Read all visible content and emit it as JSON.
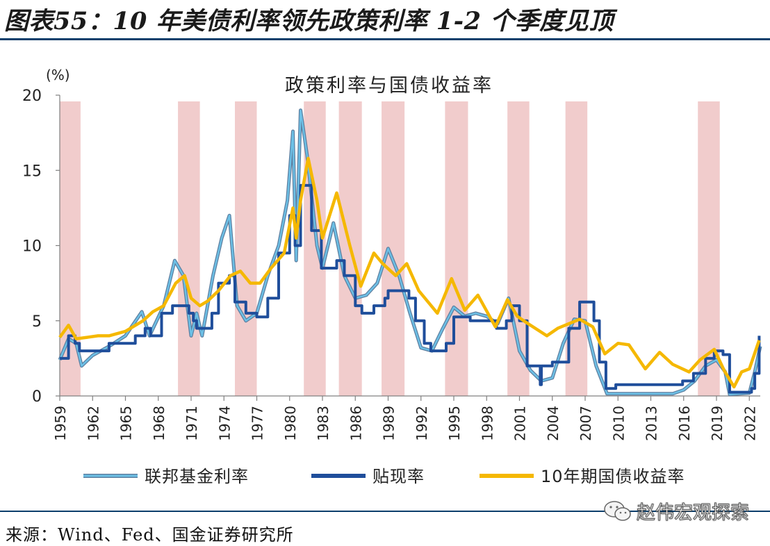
{
  "figure": {
    "title": "图表55：10 年美债利率领先政策利率 1-2 个季度见顶",
    "source": "来源：Wind、Fed、国金证券研究所",
    "watermark": "赵伟宏观探索"
  },
  "chart_data": {
    "type": "line",
    "title": "政策利率与国债收益率",
    "ylabel": "(%)",
    "xlabel": "",
    "xlim": [
      1959,
      2023
    ],
    "ylim": [
      0,
      20
    ],
    "yticks": [
      0,
      5,
      10,
      15,
      20
    ],
    "xticks": [
      "1959",
      "1962",
      "1965",
      "1968",
      "1971",
      "1974",
      "1977",
      "1980",
      "1983",
      "1986",
      "1989",
      "1992",
      "1995",
      "1998",
      "2001",
      "2004",
      "2007",
      "2010",
      "2013",
      "2016",
      "2019",
      "2022"
    ],
    "grid": false,
    "legend_position": "bottom",
    "shaded_periods": [
      [
        1959.0,
        1960.9
      ],
      [
        1969.8,
        1971.8
      ],
      [
        1975.0,
        1977.0
      ],
      [
        1981.3,
        1983.3
      ],
      [
        1984.5,
        1986.6
      ],
      [
        1988.4,
        1990.5
      ],
      [
        1994.2,
        1996.3
      ],
      [
        1999.9,
        2001.9
      ],
      [
        2005.2,
        2007.2
      ],
      [
        2017.3,
        2019.3
      ]
    ],
    "series": [
      {
        "name": "联邦基金利率",
        "color": "#6cc0e6",
        "points": [
          [
            1959,
            2.4
          ],
          [
            1959.8,
            3.8
          ],
          [
            1960.5,
            3.5
          ],
          [
            1961,
            2
          ],
          [
            1962,
            2.7
          ],
          [
            1963.5,
            3.3
          ],
          [
            1965,
            4
          ],
          [
            1966.5,
            5.6
          ],
          [
            1967.2,
            4
          ],
          [
            1968.5,
            6
          ],
          [
            1969.5,
            9
          ],
          [
            1970.3,
            8
          ],
          [
            1971,
            4
          ],
          [
            1971.5,
            5.5
          ],
          [
            1972,
            4
          ],
          [
            1973,
            8
          ],
          [
            1973.8,
            10.5
          ],
          [
            1974.5,
            12
          ],
          [
            1975.2,
            6
          ],
          [
            1976,
            5
          ],
          [
            1977,
            5.5
          ],
          [
            1978,
            8
          ],
          [
            1979,
            10
          ],
          [
            1979.8,
            13
          ],
          [
            1980.3,
            17.6
          ],
          [
            1980.6,
            9
          ],
          [
            1981,
            19
          ],
          [
            1981.6,
            16
          ],
          [
            1982.5,
            10
          ],
          [
            1983,
            8.5
          ],
          [
            1984,
            11.5
          ],
          [
            1985,
            8
          ],
          [
            1986,
            6.5
          ],
          [
            1987,
            6.7
          ],
          [
            1988,
            7.5
          ],
          [
            1989,
            9.8
          ],
          [
            1990,
            8
          ],
          [
            1991,
            5.5
          ],
          [
            1992,
            3.2
          ],
          [
            1993,
            3
          ],
          [
            1994,
            4.5
          ],
          [
            1995,
            5.9
          ],
          [
            1996,
            5.3
          ],
          [
            1997,
            5.5
          ],
          [
            1998,
            5.3
          ],
          [
            1999,
            4.8
          ],
          [
            2000,
            6.5
          ],
          [
            2001,
            3
          ],
          [
            2002,
            1.7
          ],
          [
            2003,
            1
          ],
          [
            2004,
            1.2
          ],
          [
            2005,
            3.5
          ],
          [
            2006,
            5.1
          ],
          [
            2007,
            5
          ],
          [
            2008,
            2
          ],
          [
            2009,
            0.15
          ],
          [
            2012,
            0.15
          ],
          [
            2015,
            0.15
          ],
          [
            2016,
            0.4
          ],
          [
            2017,
            1
          ],
          [
            2018,
            2
          ],
          [
            2019,
            2.4
          ],
          [
            2019.8,
            1.6
          ],
          [
            2020.2,
            0.1
          ],
          [
            2022,
            0.2
          ],
          [
            2022.5,
            1.6
          ],
          [
            2023,
            3.3
          ]
        ]
      },
      {
        "name": "贴现率",
        "color": "#1f4e9b",
        "points": [
          [
            1959,
            2.5
          ],
          [
            1959.8,
            4
          ],
          [
            1960.4,
            3.5
          ],
          [
            1960.8,
            3
          ],
          [
            1963.5,
            3.5
          ],
          [
            1965.9,
            4
          ],
          [
            1966.8,
            4.5
          ],
          [
            1967.3,
            4
          ],
          [
            1968.3,
            5.5
          ],
          [
            1969.3,
            6
          ],
          [
            1970.8,
            5.5
          ],
          [
            1971.2,
            5
          ],
          [
            1971.5,
            4.5
          ],
          [
            1972.9,
            5.5
          ],
          [
            1973.5,
            7.5
          ],
          [
            1974.5,
            8
          ],
          [
            1975,
            6.25
          ],
          [
            1976,
            5.5
          ],
          [
            1977,
            5.25
          ],
          [
            1978,
            6.5
          ],
          [
            1979,
            9.5
          ],
          [
            1980,
            12
          ],
          [
            1980.5,
            10
          ],
          [
            1981,
            14
          ],
          [
            1982,
            11
          ],
          [
            1982.9,
            8.5
          ],
          [
            1984.3,
            9
          ],
          [
            1985,
            8
          ],
          [
            1986,
            6
          ],
          [
            1986.6,
            5.5
          ],
          [
            1987.7,
            6
          ],
          [
            1988.7,
            6.5
          ],
          [
            1989,
            7
          ],
          [
            1990.9,
            6.5
          ],
          [
            1991.5,
            5
          ],
          [
            1992.3,
            3.5
          ],
          [
            1992.9,
            3
          ],
          [
            1994.3,
            3.5
          ],
          [
            1995,
            5.25
          ],
          [
            1996.5,
            5
          ],
          [
            1998.9,
            4.5
          ],
          [
            1999.8,
            5
          ],
          [
            2000.3,
            6
          ],
          [
            2001,
            5
          ],
          [
            2001.7,
            2
          ],
          [
            2002.9,
            0.75
          ],
          [
            2003,
            2
          ],
          [
            2004,
            2.25
          ],
          [
            2005.5,
            4.5
          ],
          [
            2006.5,
            6.25
          ],
          [
            2007.8,
            5
          ],
          [
            2008.3,
            2.25
          ],
          [
            2008.9,
            0.5
          ],
          [
            2009.8,
            0.75
          ],
          [
            2015.9,
            1
          ],
          [
            2016.9,
            1.5
          ],
          [
            2018,
            2.5
          ],
          [
            2018.8,
            3
          ],
          [
            2019.6,
            2.75
          ],
          [
            2020.2,
            0.25
          ],
          [
            2022.2,
            0.5
          ],
          [
            2022.5,
            1.5
          ],
          [
            2022.9,
            4
          ]
        ]
      },
      {
        "name": "10年期国债收益率",
        "color": "#f5b800",
        "points": [
          [
            1959,
            3.9
          ],
          [
            1959.8,
            4.7
          ],
          [
            1960.5,
            3.8
          ],
          [
            1961.5,
            3.9
          ],
          [
            1962.5,
            4
          ],
          [
            1963.5,
            4
          ],
          [
            1965,
            4.3
          ],
          [
            1966.6,
            5
          ],
          [
            1967.5,
            5.6
          ],
          [
            1968.5,
            6
          ],
          [
            1969.6,
            7.5
          ],
          [
            1970.4,
            8
          ],
          [
            1971,
            6.5
          ],
          [
            1971.8,
            6
          ],
          [
            1972.5,
            6.3
          ],
          [
            1973.5,
            7
          ],
          [
            1974.6,
            8
          ],
          [
            1975.5,
            8.3
          ],
          [
            1976.4,
            7.5
          ],
          [
            1977.3,
            7.5
          ],
          [
            1978.3,
            8.5
          ],
          [
            1979.5,
            9.5
          ],
          [
            1980.3,
            12.5
          ],
          [
            1980.6,
            10.5
          ],
          [
            1981,
            13
          ],
          [
            1981.7,
            15.8
          ],
          [
            1982.5,
            13
          ],
          [
            1983,
            10.5
          ],
          [
            1984.3,
            13.5
          ],
          [
            1985.5,
            10
          ],
          [
            1986.5,
            7.3
          ],
          [
            1987.7,
            9.5
          ],
          [
            1988.5,
            8.8
          ],
          [
            1989.7,
            8
          ],
          [
            1990.7,
            8.8
          ],
          [
            1991.8,
            7
          ],
          [
            1993.5,
            5.5
          ],
          [
            1994.8,
            7.8
          ],
          [
            1996,
            5.7
          ],
          [
            1997.2,
            6.7
          ],
          [
            1998.8,
            4.6
          ],
          [
            1999.9,
            6.4
          ],
          [
            2000.8,
            5.3
          ],
          [
            2001.8,
            4.8
          ],
          [
            2003.5,
            4
          ],
          [
            2004.5,
            4.5
          ],
          [
            2006.5,
            5.1
          ],
          [
            2007.7,
            4.6
          ],
          [
            2008.8,
            2.8
          ],
          [
            2010,
            3.5
          ],
          [
            2011,
            3.4
          ],
          [
            2012.5,
            1.8
          ],
          [
            2013.8,
            2.9
          ],
          [
            2015,
            2.1
          ],
          [
            2016.5,
            1.6
          ],
          [
            2017.5,
            2.4
          ],
          [
            2018.8,
            3.1
          ],
          [
            2019.7,
            1.7
          ],
          [
            2020.6,
            0.6
          ],
          [
            2021.3,
            1.6
          ],
          [
            2022,
            1.8
          ],
          [
            2022.9,
            3.7
          ]
        ]
      }
    ]
  }
}
